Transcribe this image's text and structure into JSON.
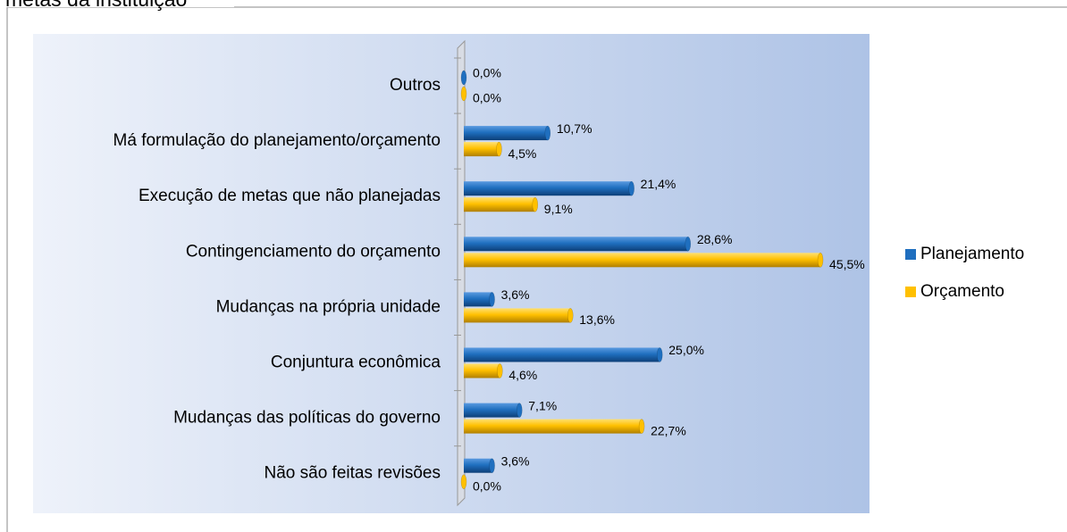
{
  "chart_data": {
    "type": "hbar",
    "title": "metas da instituição",
    "categories": [
      "Outros",
      "Má formulação do planejamento/orçamento",
      "Execução de metas que não planejadas",
      "Contingenciamento do orçamento",
      "Mudanças na própria unidade",
      "Conjuntura econômica",
      "Mudanças das políticas do governo",
      "Não são feitas revisões"
    ],
    "series": [
      {
        "name": "Planejamento",
        "color": "#1f6fbf",
        "values": [
          0.0,
          10.7,
          21.4,
          28.6,
          3.6,
          25.0,
          7.1,
          3.6
        ],
        "value_labels": [
          "0,0%",
          "10,7%",
          "21,4%",
          "28,6%",
          "3,6%",
          "25,0%",
          "7,1%",
          "3,6%"
        ]
      },
      {
        "name": "Orçamento",
        "color": "#ffc000",
        "values": [
          0.0,
          4.5,
          9.1,
          45.5,
          13.6,
          4.6,
          22.7,
          0.0
        ],
        "value_labels": [
          "0,0%",
          "4,5%",
          "9,1%",
          "45,5%",
          "13,6%",
          "4,6%",
          "22,7%",
          "0,0%"
        ]
      }
    ],
    "xlim": [
      0,
      50
    ],
    "legend": "right"
  }
}
